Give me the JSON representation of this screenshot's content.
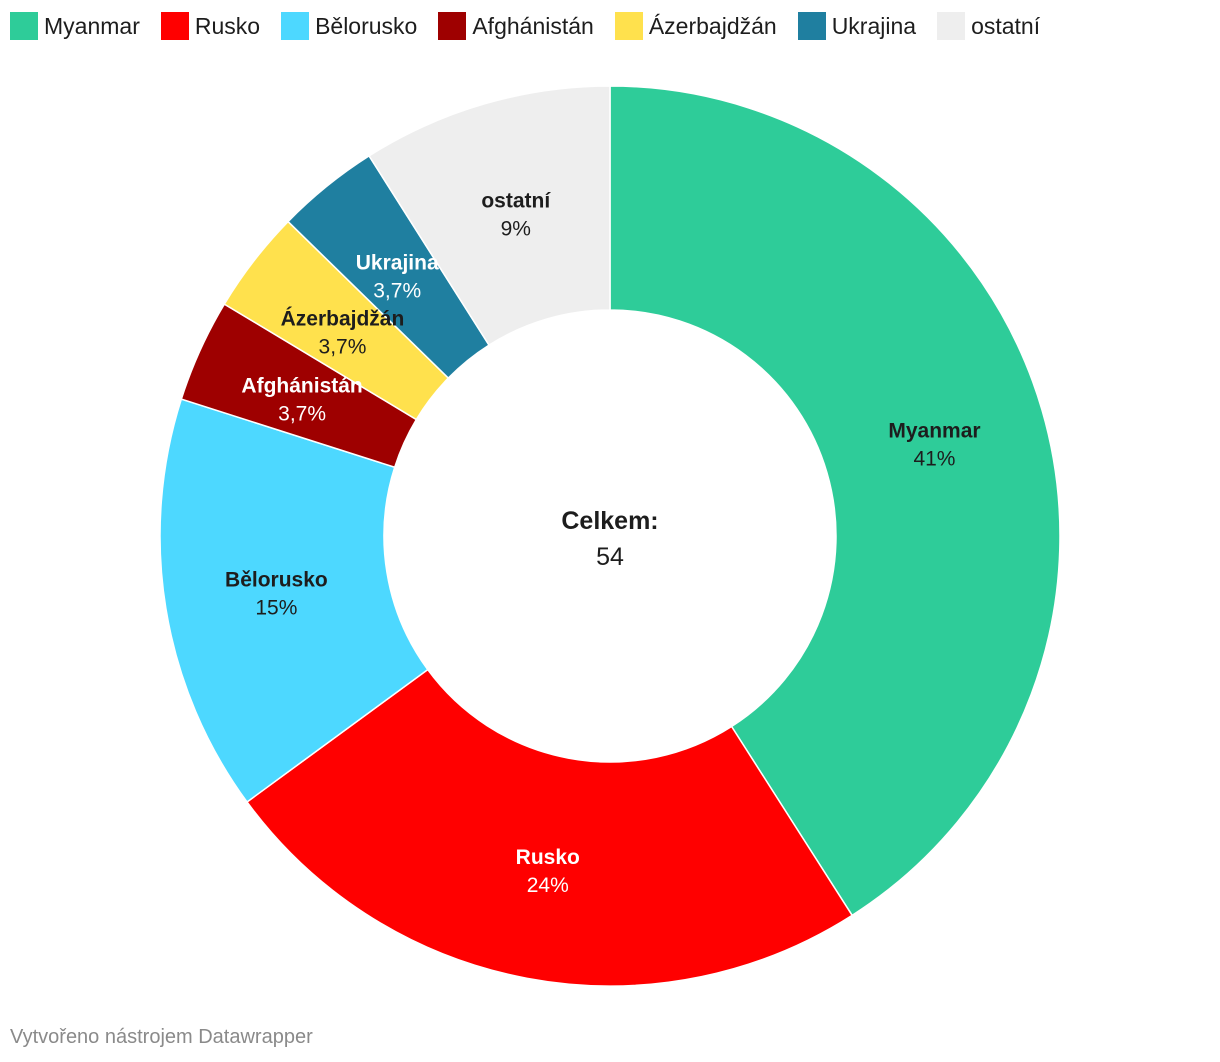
{
  "chart_data": {
    "type": "pie",
    "variant": "donut",
    "center_label": "Celkem:",
    "center_value": "54",
    "slices": [
      {
        "name": "Myanmar",
        "value": 41,
        "label": "41%",
        "color": "#2ecc99",
        "text_color": "#1d1d1d"
      },
      {
        "name": "Rusko",
        "value": 24,
        "label": "24%",
        "color": "#ff0000",
        "text_color": "#ffffff"
      },
      {
        "name": "Bělorusko",
        "value": 15,
        "label": "15%",
        "color": "#4dd8ff",
        "text_color": "#1d1d1d"
      },
      {
        "name": "Afghánistán",
        "value": 3.7,
        "label": "3,7%",
        "color": "#9e0000",
        "text_color": "#ffffff"
      },
      {
        "name": "Ázerbajdžán",
        "value": 3.7,
        "label": "3,7%",
        "color": "#ffe14d",
        "text_color": "#1d1d1d"
      },
      {
        "name": "Ukrajina",
        "value": 3.7,
        "label": "3,7%",
        "color": "#1f7fa0",
        "text_color": "#ffffff"
      },
      {
        "name": "ostatní",
        "value": 9,
        "label": "9%",
        "color": "#eeeeee",
        "text_color": "#1d1d1d"
      }
    ],
    "legend": [
      "Myanmar",
      "Rusko",
      "Bělorusko",
      "Afghánistán",
      "Ázerbajdžán",
      "Ukrajina",
      "ostatní"
    ],
    "legend_position": "top-left"
  },
  "footer": {
    "credit": "Vytvořeno nástrojem Datawrapper"
  }
}
